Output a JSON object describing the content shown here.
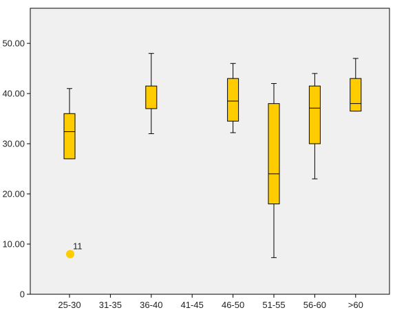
{
  "chart_data": {
    "type": "boxplot",
    "categories": [
      "25-30",
      "31-35",
      "36-40",
      "41-45",
      "46-50",
      "51-55",
      "56-60",
      ">60"
    ],
    "ylim": [
      0,
      57
    ],
    "yticks": [
      0,
      10,
      20,
      30,
      40,
      50
    ],
    "ytick_labels": [
      "0",
      "10.00",
      "20.00",
      "30.00",
      "40.00",
      "50.00"
    ],
    "boxes": [
      {
        "category": "25-30",
        "min": 27,
        "q1": 27,
        "median": 32.4,
        "q3": 36,
        "max": 41
      },
      {
        "category": "36-40",
        "min": 32,
        "q1": 37,
        "median": 37,
        "q3": 41.5,
        "max": 48
      },
      {
        "category": "46-50",
        "min": 32.2,
        "q1": 34.5,
        "median": 38.5,
        "q3": 43,
        "max": 46
      },
      {
        "category": "51-55",
        "min": 7.3,
        "q1": 18,
        "median": 24,
        "q3": 38,
        "max": 42
      },
      {
        "category": "56-60",
        "min": 23,
        "q1": 30,
        "median": 37.1,
        "q3": 41.5,
        "max": 44
      },
      {
        "category": ">60",
        "min": 36.5,
        "q1": 36.5,
        "median": 38,
        "q3": 43,
        "max": 47
      }
    ],
    "outliers": [
      {
        "category": "25-30",
        "value": 8,
        "label": "11"
      }
    ],
    "colors": {
      "box_fill": "#ffcc00",
      "outlier": "#ffcc00",
      "plot_background": "#f0f0f0",
      "outline": "#000000"
    },
    "grid": false,
    "legend": "none"
  }
}
